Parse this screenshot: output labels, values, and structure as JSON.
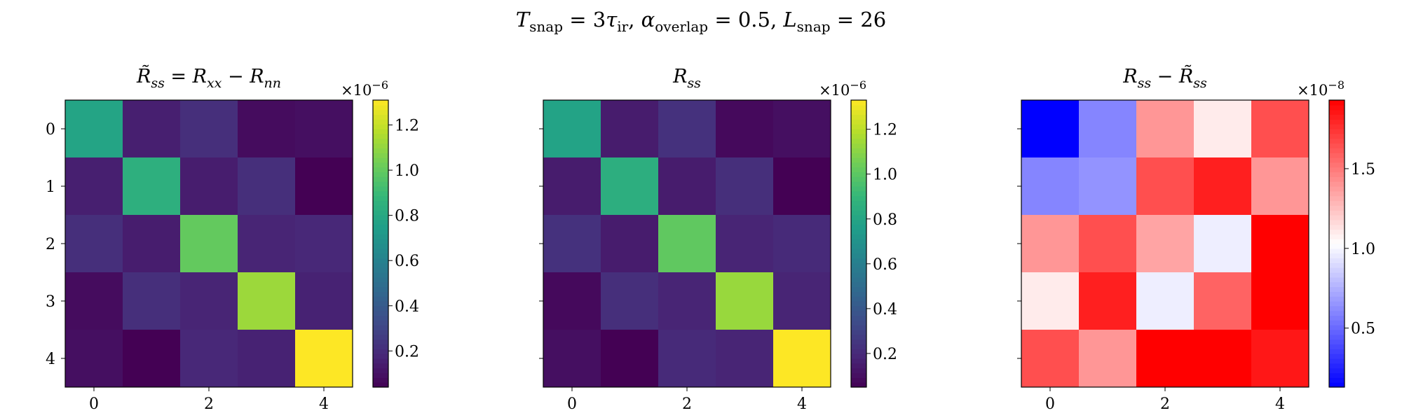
{
  "figure": {
    "suptitle": {
      "parts": [
        {
          "italic": "T",
          "sub": "snap",
          "rest": " = 3"
        },
        {
          "italic": "τ",
          "sub": "ir",
          "rest": ",   "
        },
        {
          "italic": "α",
          "sub": "overlap",
          "rest": " = 0.5,   "
        },
        {
          "italic": "L",
          "sub": "snap",
          "rest": " = 26"
        }
      ]
    }
  },
  "chart_data": [
    {
      "type": "heatmap",
      "title": "R̃ss = Rxx − Rnn",
      "colormap": "viridis",
      "x_ticks": [
        "0",
        "2",
        "4"
      ],
      "y_ticks": [
        "0",
        "1",
        "2",
        "3",
        "4"
      ],
      "show_y_tick_labels": true,
      "colorbar": {
        "ticks": [
          "0.2",
          "0.4",
          "0.6",
          "0.8",
          "1.0",
          "1.2"
        ],
        "multiplier": "×10−6",
        "min": 0.04,
        "max": 1.31
      },
      "values": [
        [
          0.78,
          0.15,
          0.21,
          0.08,
          0.09
        ],
        [
          0.15,
          0.84,
          0.14,
          0.21,
          0.04
        ],
        [
          0.21,
          0.14,
          1.0,
          0.17,
          0.18
        ],
        [
          0.08,
          0.21,
          0.17,
          1.12,
          0.16
        ],
        [
          0.09,
          0.04,
          0.18,
          0.16,
          1.31
        ]
      ]
    },
    {
      "type": "heatmap",
      "title": "Rss",
      "colormap": "viridis",
      "x_ticks": [
        "0",
        "2",
        "4"
      ],
      "y_ticks": [
        "0",
        "1",
        "2",
        "3",
        "4"
      ],
      "show_y_tick_labels": false,
      "colorbar": {
        "ticks": [
          "0.2",
          "0.4",
          "0.6",
          "0.8",
          "1.0",
          "1.2"
        ],
        "multiplier": "×10−6",
        "min": 0.05,
        "max": 1.33
      },
      "values": [
        [
          0.79,
          0.15,
          0.23,
          0.08,
          0.1
        ],
        [
          0.15,
          0.85,
          0.15,
          0.22,
          0.05
        ],
        [
          0.23,
          0.15,
          1.01,
          0.18,
          0.2
        ],
        [
          0.08,
          0.22,
          0.18,
          1.13,
          0.18
        ],
        [
          0.1,
          0.05,
          0.2,
          0.18,
          1.33
        ]
      ]
    },
    {
      "type": "heatmap",
      "title": "Rss − R̃ss",
      "colormap": "bwr",
      "x_ticks": [
        "0",
        "2",
        "4"
      ],
      "y_ticks": [
        "0",
        "1",
        "2",
        "3",
        "4"
      ],
      "show_y_tick_labels": false,
      "colorbar": {
        "ticks": [
          "0.5",
          "1.0",
          "1.5"
        ],
        "multiplier": "×10−8",
        "min": 0.13,
        "max": 1.93
      },
      "values": [
        [
          0.13,
          0.6,
          1.4,
          1.1,
          1.65
        ],
        [
          0.6,
          0.65,
          1.65,
          1.82,
          1.4
        ],
        [
          1.4,
          1.65,
          1.35,
          0.97,
          1.93
        ],
        [
          1.1,
          1.82,
          0.97,
          1.58,
          1.93
        ],
        [
          1.65,
          1.4,
          1.93,
          1.93,
          1.85
        ]
      ]
    }
  ]
}
